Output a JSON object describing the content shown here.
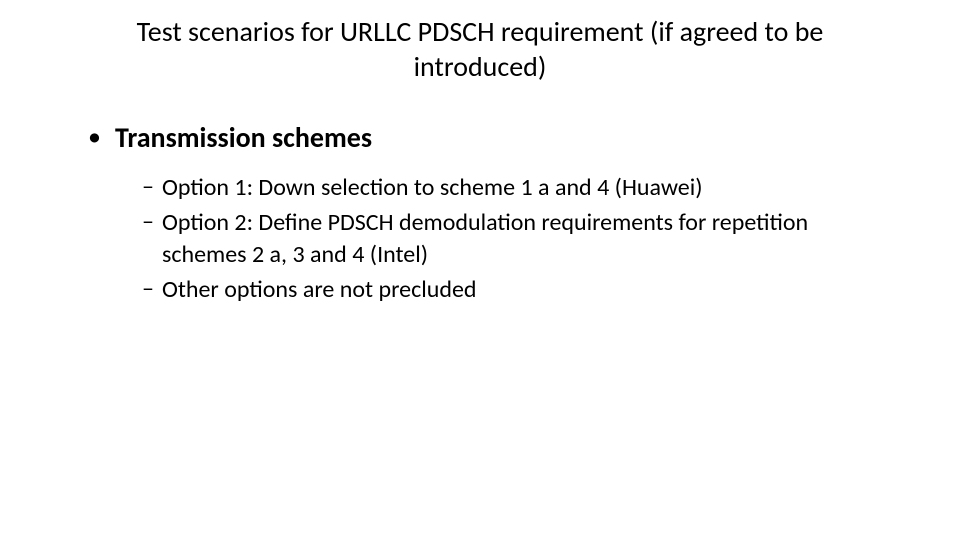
{
  "slide": {
    "title": "Test scenarios for URLLC PDSCH requirement (if agreed to be introduced)",
    "background_color": "#ffffff",
    "text_color": "#000000",
    "title_fontsize": 28,
    "title_fontweight": 400,
    "bullets": {
      "l1": {
        "marker": "•",
        "text": "Transmission schemes",
        "fontsize": 28,
        "fontweight": 700
      },
      "l2": [
        {
          "marker": "–",
          "text": "Option 1: Down selection to scheme 1 a and 4 (Huawei)"
        },
        {
          "marker": "–",
          "text": "Option 2: Define PDSCH demodulation requirements for repetition schemes 2 a, 3 and 4 (Intel)"
        },
        {
          "marker": "–",
          "text": "Other options are not precluded"
        }
      ],
      "l2_fontsize": 24,
      "l2_fontweight": 400
    }
  }
}
